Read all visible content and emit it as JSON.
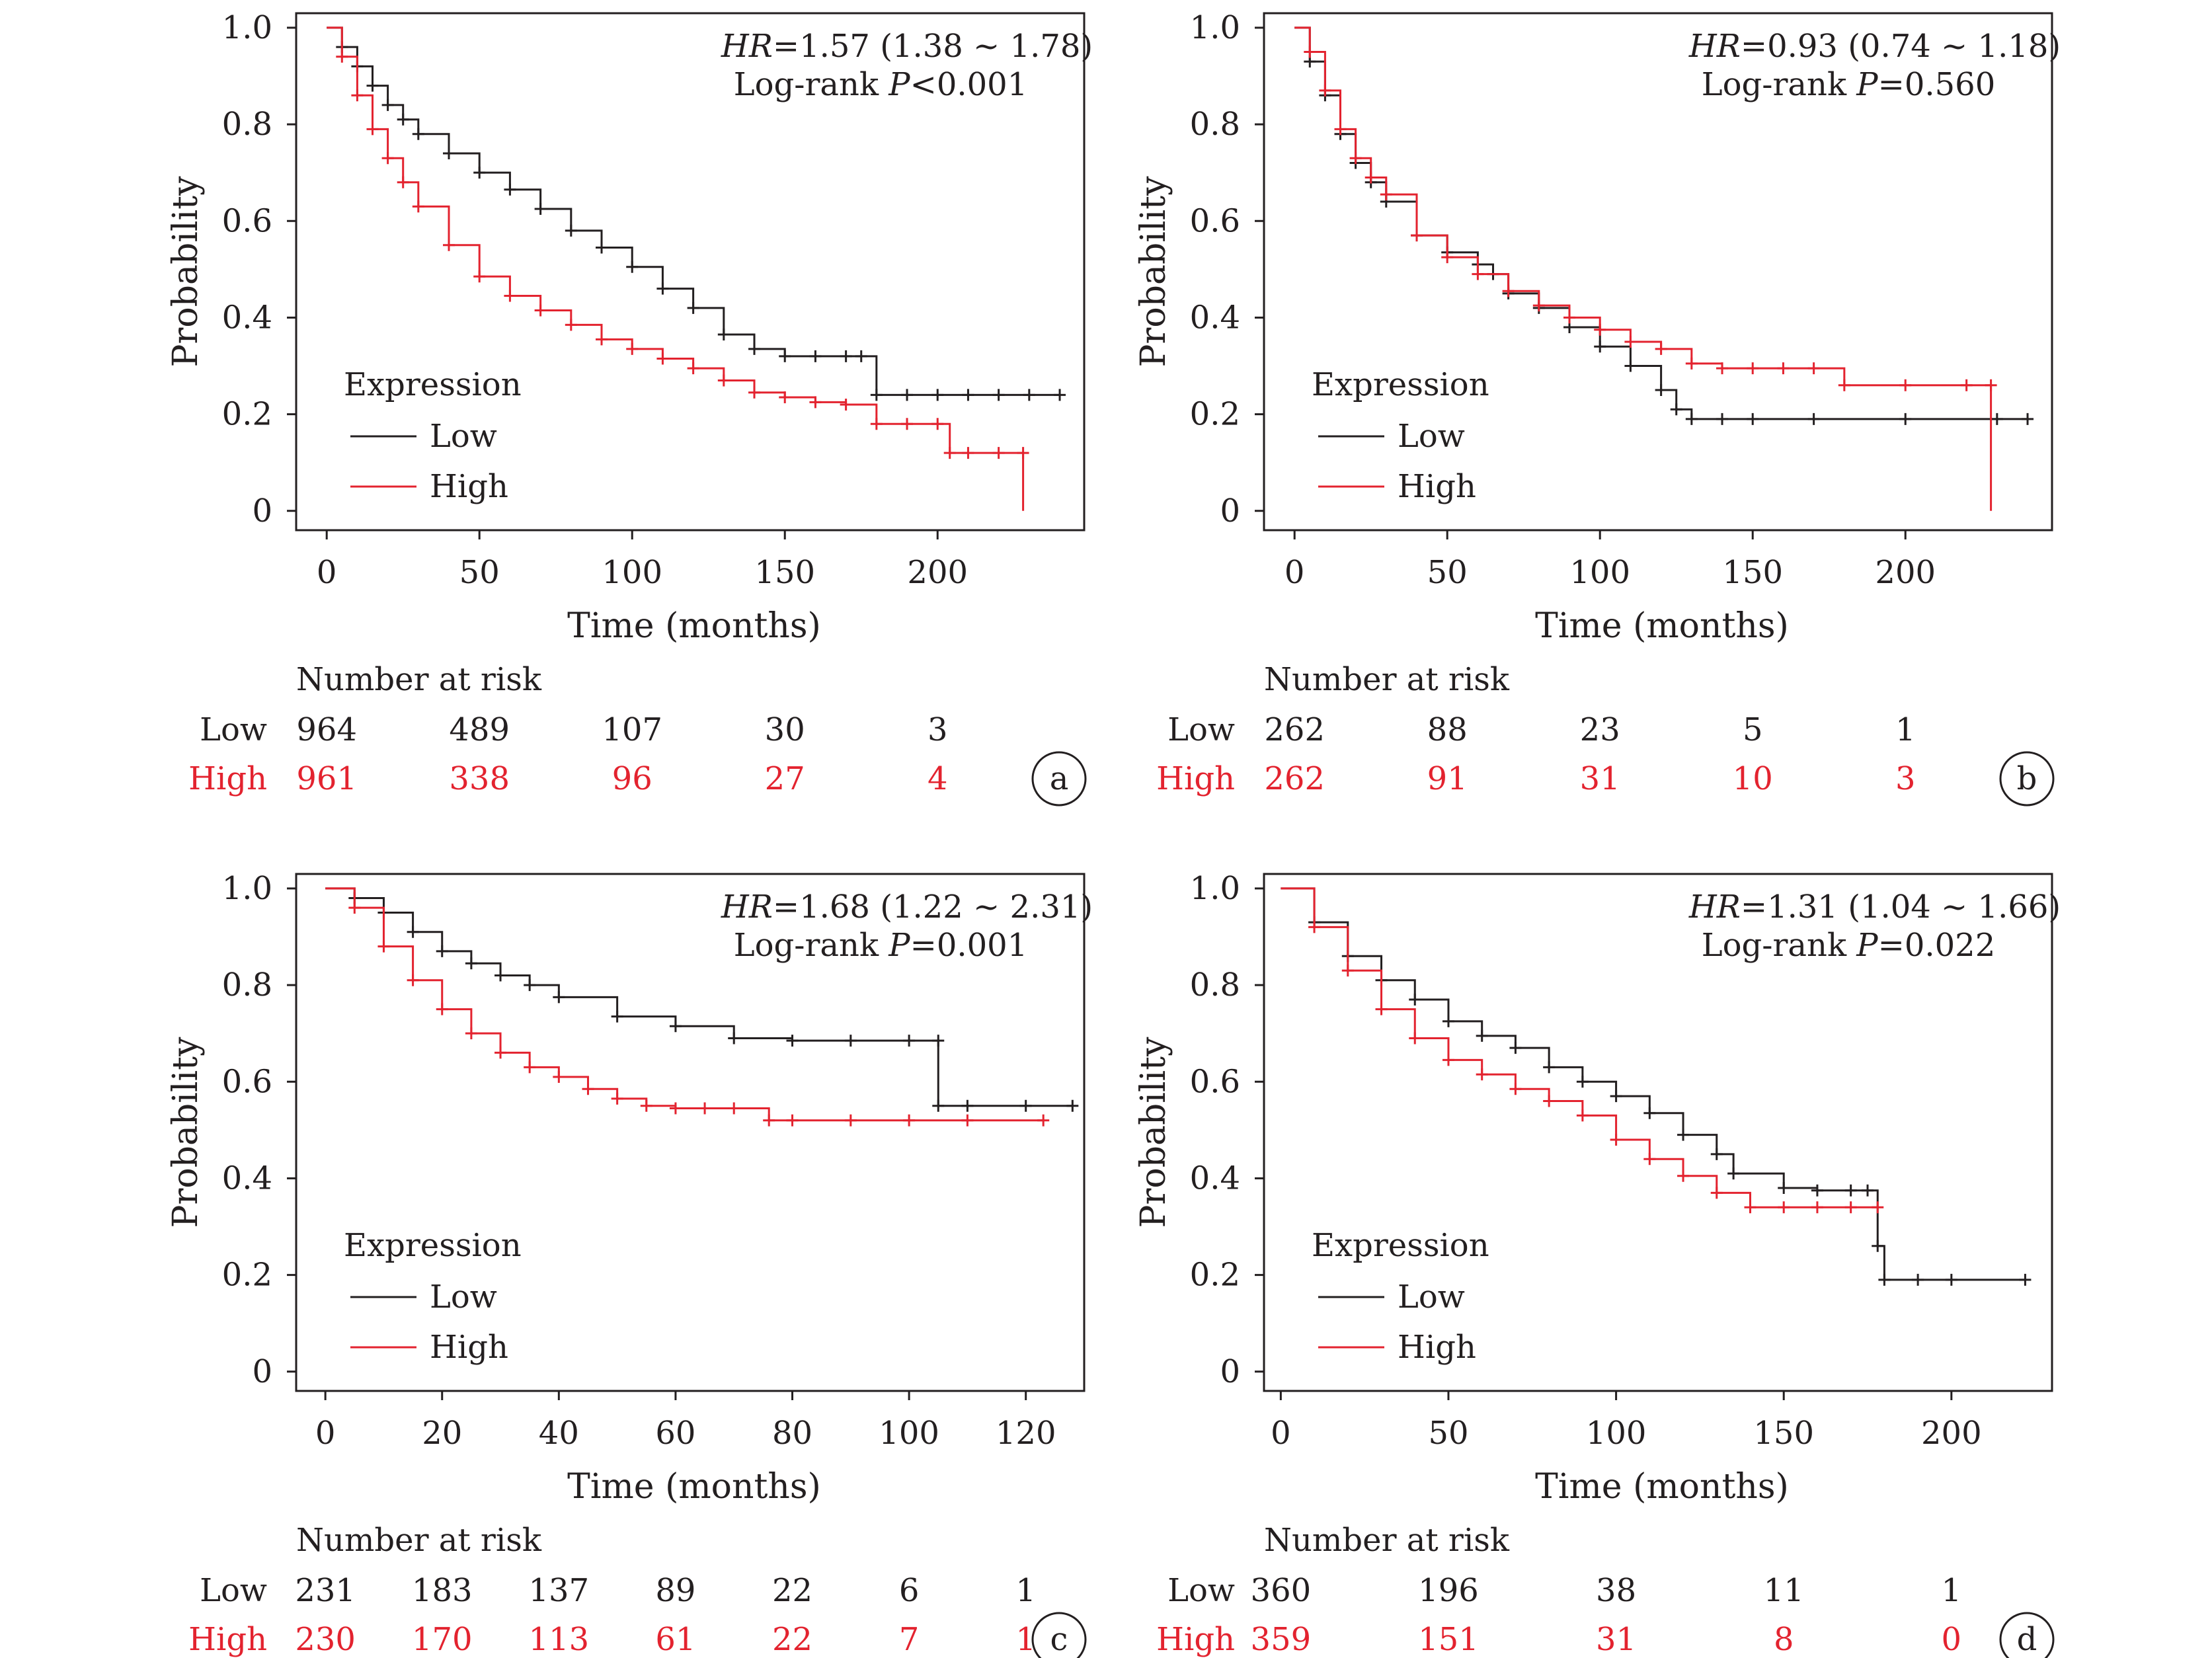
{
  "figure": {
    "colors": {
      "low": "#231f20",
      "high": "#e3232f"
    },
    "axis_titles": {
      "y": "Probability",
      "x": "Time (months)"
    },
    "legend": {
      "title": "Expression",
      "low": "Low",
      "high": "High"
    },
    "risk_table": {
      "heading": "Number at risk",
      "low_label": "Low",
      "high_label": "High"
    }
  },
  "chart_data": [
    {
      "type": "line",
      "panel": "a",
      "annotation": {
        "hr_label": "HR",
        "hr_text": "=1.57 (1.38 ~ 1.78)",
        "p_prefix": "Log-rank ",
        "p_label": "P",
        "p_text": "<0.001"
      },
      "xlim": [
        -10,
        248
      ],
      "ylim": [
        -0.04,
        1.03
      ],
      "xticks": [
        0,
        50,
        100,
        150,
        200
      ],
      "yticks": [
        0,
        0.2,
        0.4,
        0.6,
        0.8,
        1.0
      ],
      "ytick_labels": [
        "0",
        "0.2",
        "0.4",
        "0.6",
        "0.8",
        "1.0"
      ],
      "grid": false,
      "legend_position": "bottom-left",
      "series": [
        {
          "name": "Low",
          "x": [
            0,
            5,
            10,
            15,
            20,
            25,
            30,
            40,
            50,
            60,
            70,
            80,
            90,
            100,
            110,
            120,
            130,
            140,
            150,
            160,
            170,
            175,
            180,
            190,
            200,
            210,
            220,
            230,
            240
          ],
          "y": [
            1.0,
            0.96,
            0.92,
            0.88,
            0.84,
            0.81,
            0.78,
            0.74,
            0.7,
            0.665,
            0.625,
            0.58,
            0.545,
            0.505,
            0.46,
            0.42,
            0.365,
            0.335,
            0.32,
            0.32,
            0.32,
            0.32,
            0.24,
            0.24,
            0.24,
            0.24,
            0.24,
            0.24,
            0.24
          ]
        },
        {
          "name": "High",
          "x": [
            0,
            5,
            10,
            15,
            20,
            25,
            30,
            40,
            50,
            60,
            70,
            80,
            90,
            100,
            110,
            120,
            130,
            140,
            150,
            160,
            170,
            180,
            190,
            200,
            204,
            210,
            220,
            228,
            228
          ],
          "y": [
            1.0,
            0.94,
            0.86,
            0.79,
            0.73,
            0.68,
            0.63,
            0.55,
            0.485,
            0.445,
            0.415,
            0.385,
            0.355,
            0.335,
            0.315,
            0.295,
            0.27,
            0.245,
            0.235,
            0.225,
            0.22,
            0.18,
            0.18,
            0.18,
            0.12,
            0.12,
            0.12,
            0.12,
            0.0
          ]
        }
      ],
      "risk_table": {
        "positions": [
          0,
          50,
          100,
          150,
          200
        ],
        "low": [
          "964",
          "489",
          "107",
          "30",
          "3"
        ],
        "high": [
          "961",
          "338",
          "96",
          "27",
          "4"
        ]
      }
    },
    {
      "type": "line",
      "panel": "b",
      "annotation": {
        "hr_label": "HR",
        "hr_text": "=0.93 (0.74 ~ 1.18)",
        "p_prefix": "Log-rank ",
        "p_label": "P",
        "p_text": "=0.560"
      },
      "xlim": [
        -10,
        248
      ],
      "ylim": [
        -0.04,
        1.03
      ],
      "xticks": [
        0,
        50,
        100,
        150,
        200
      ],
      "yticks": [
        0,
        0.2,
        0.4,
        0.6,
        0.8,
        1.0
      ],
      "ytick_labels": [
        "0",
        "0.2",
        "0.4",
        "0.6",
        "0.8",
        "1.0"
      ],
      "grid": false,
      "legend_position": "bottom-left",
      "series": [
        {
          "name": "Low",
          "x": [
            0,
            5,
            10,
            15,
            20,
            25,
            30,
            40,
            50,
            60,
            65,
            70,
            80,
            90,
            100,
            110,
            120,
            125,
            130,
            140,
            150,
            170,
            200,
            230,
            240
          ],
          "y": [
            1.0,
            0.93,
            0.86,
            0.78,
            0.72,
            0.68,
            0.64,
            0.57,
            0.535,
            0.51,
            0.49,
            0.45,
            0.42,
            0.38,
            0.34,
            0.3,
            0.25,
            0.21,
            0.19,
            0.19,
            0.19,
            0.19,
            0.19,
            0.19,
            0.19
          ]
        },
        {
          "name": "High",
          "x": [
            0,
            5,
            10,
            15,
            20,
            25,
            30,
            40,
            50,
            60,
            70,
            80,
            90,
            100,
            110,
            120,
            130,
            140,
            150,
            160,
            170,
            180,
            200,
            220,
            228,
            228
          ],
          "y": [
            1.0,
            0.95,
            0.87,
            0.79,
            0.73,
            0.69,
            0.655,
            0.57,
            0.525,
            0.49,
            0.455,
            0.425,
            0.4,
            0.375,
            0.35,
            0.335,
            0.305,
            0.295,
            0.295,
            0.295,
            0.295,
            0.26,
            0.26,
            0.26,
            0.26,
            0.0
          ]
        }
      ],
      "risk_table": {
        "positions": [
          0,
          50,
          100,
          150,
          200
        ],
        "low": [
          "262",
          "88",
          "23",
          "5",
          "1"
        ],
        "high": [
          "262",
          "91",
          "31",
          "10",
          "3"
        ]
      }
    },
    {
      "type": "line",
      "panel": "c",
      "annotation": {
        "hr_label": "HR",
        "hr_text": "=1.68 (1.22 ~ 2.31)",
        "p_prefix": "Log-rank ",
        "p_label": "P",
        "p_text": "=0.001"
      },
      "xlim": [
        -5,
        130
      ],
      "ylim": [
        -0.04,
        1.03
      ],
      "xticks": [
        0,
        20,
        40,
        60,
        80,
        100,
        120
      ],
      "yticks": [
        0,
        0.2,
        0.4,
        0.6,
        0.8,
        1.0
      ],
      "ytick_labels": [
        "0",
        "0.2",
        "0.4",
        "0.6",
        "0.8",
        "1.0"
      ],
      "grid": false,
      "legend_position": "bottom-left",
      "series": [
        {
          "name": "Low",
          "x": [
            0,
            5,
            10,
            15,
            20,
            25,
            30,
            35,
            40,
            50,
            60,
            70,
            80,
            90,
            100,
            105,
            105,
            110,
            120,
            128
          ],
          "y": [
            1.0,
            0.98,
            0.95,
            0.91,
            0.87,
            0.845,
            0.82,
            0.8,
            0.775,
            0.735,
            0.715,
            0.69,
            0.685,
            0.685,
            0.685,
            0.685,
            0.55,
            0.55,
            0.55,
            0.55
          ]
        },
        {
          "name": "High",
          "x": [
            0,
            5,
            10,
            15,
            20,
            25,
            30,
            35,
            40,
            45,
            50,
            55,
            60,
            65,
            70,
            76,
            80,
            90,
            100,
            110,
            123
          ],
          "y": [
            1.0,
            0.96,
            0.88,
            0.81,
            0.75,
            0.7,
            0.66,
            0.63,
            0.61,
            0.585,
            0.565,
            0.55,
            0.545,
            0.545,
            0.545,
            0.52,
            0.52,
            0.52,
            0.52,
            0.52,
            0.52
          ]
        }
      ],
      "risk_table": {
        "positions": [
          0,
          20,
          40,
          60,
          80,
          100,
          120
        ],
        "low": [
          "231",
          "183",
          "137",
          "89",
          "22",
          "6",
          "1"
        ],
        "high": [
          "230",
          "170",
          "113",
          "61",
          "22",
          "7",
          "1"
        ]
      }
    },
    {
      "type": "line",
      "panel": "d",
      "annotation": {
        "hr_label": "HR",
        "hr_text": "=1.31 (1.04 ~ 1.66)",
        "p_prefix": "Log-rank ",
        "p_label": "P",
        "p_text": "=0.022"
      },
      "xlim": [
        -5,
        230
      ],
      "ylim": [
        -0.04,
        1.03
      ],
      "xticks": [
        0,
        50,
        100,
        150,
        200
      ],
      "yticks": [
        0,
        0.2,
        0.4,
        0.6,
        0.8,
        1.0
      ],
      "ytick_labels": [
        "0",
        "0.2",
        "0.4",
        "0.6",
        "0.8",
        "1.0"
      ],
      "grid": false,
      "legend_position": "bottom-left",
      "series": [
        {
          "name": "Low",
          "x": [
            0,
            10,
            20,
            30,
            40,
            50,
            60,
            70,
            80,
            90,
            100,
            110,
            120,
            130,
            135,
            150,
            160,
            170,
            175,
            178,
            180,
            190,
            200,
            222
          ],
          "y": [
            1.0,
            0.93,
            0.86,
            0.81,
            0.77,
            0.725,
            0.695,
            0.67,
            0.63,
            0.6,
            0.57,
            0.535,
            0.49,
            0.45,
            0.41,
            0.38,
            0.375,
            0.375,
            0.375,
            0.26,
            0.19,
            0.19,
            0.19,
            0.19
          ]
        },
        {
          "name": "High",
          "x": [
            0,
            10,
            20,
            30,
            40,
            50,
            60,
            70,
            80,
            90,
            100,
            110,
            120,
            130,
            140,
            150,
            160,
            170,
            178
          ],
          "y": [
            1.0,
            0.92,
            0.83,
            0.75,
            0.69,
            0.645,
            0.615,
            0.585,
            0.56,
            0.53,
            0.48,
            0.44,
            0.405,
            0.37,
            0.34,
            0.34,
            0.34,
            0.34,
            0.34
          ]
        }
      ],
      "risk_table": {
        "positions": [
          0,
          50,
          100,
          150,
          200
        ],
        "low": [
          "360",
          "196",
          "38",
          "11",
          "1"
        ],
        "high": [
          "359",
          "151",
          "31",
          "8",
          "0"
        ]
      }
    }
  ]
}
